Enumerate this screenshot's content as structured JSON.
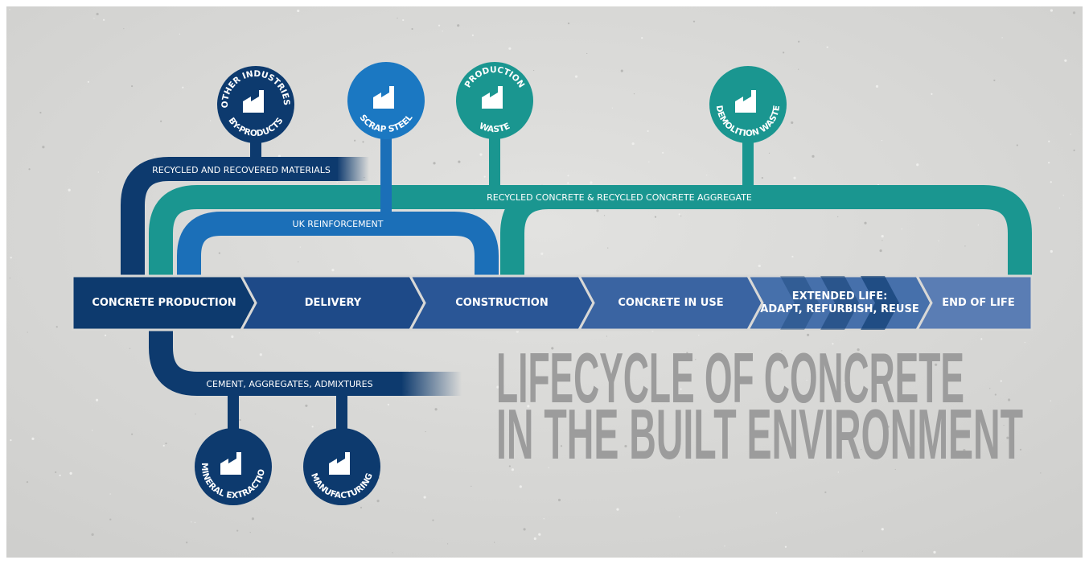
{
  "stages": [
    {
      "lines": [
        "CONCRETE PRODUCTION"
      ]
    },
    {
      "lines": [
        "DELIVERY"
      ]
    },
    {
      "lines": [
        "CONSTRUCTION"
      ]
    },
    {
      "lines": [
        "CONCRETE IN USE"
      ]
    },
    {
      "lines": [
        "EXTENDED LIFE:",
        "ADAPT, REFURBISH, REUSE"
      ]
    },
    {
      "lines": [
        "END OF LIFE"
      ]
    }
  ],
  "sources": [
    {
      "lines": [
        "OTHER INDUSTRIES'",
        "BY-PRODUCTS"
      ]
    },
    {
      "lines": [
        "SCRAP STEEL"
      ]
    },
    {
      "lines": [
        "PRODUCTION",
        "WASTE"
      ]
    },
    {
      "lines": [
        "DEMOLITION WASTE"
      ]
    },
    {
      "lines": [
        "MINERAL EXTRACTION"
      ]
    },
    {
      "lines": [
        "MANUFACTURING"
      ]
    }
  ],
  "flows": [
    {
      "label": "RECYCLED AND RECOVERED MATERIALS"
    },
    {
      "label": "UK REINFORCEMENT"
    },
    {
      "label": "RECYCLED CONCRETE & RECYCLED CONCRETE AGGREGATE"
    },
    {
      "label": "CEMENT, AGGREGATES, ADMIXTURES"
    }
  ],
  "title": {
    "lines": [
      "LIFECYCLE OF CONCRETE",
      "IN THE BUILT ENVIRONMENT"
    ]
  }
}
